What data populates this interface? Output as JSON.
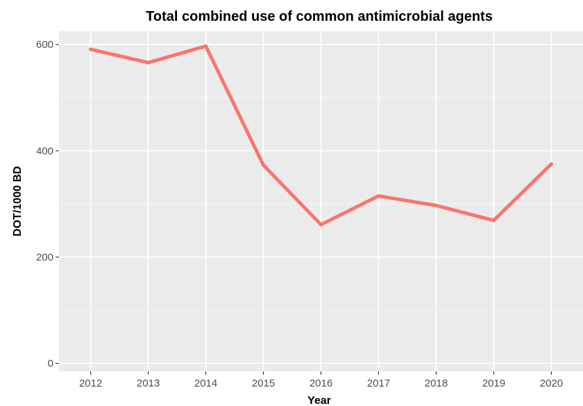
{
  "chart_data": {
    "type": "line",
    "title": "Total combined use of common antimicrobial agents",
    "xlabel": "Year",
    "ylabel": "DOT/1000 BD",
    "x": [
      2012,
      2013,
      2014,
      2015,
      2016,
      2017,
      2018,
      2019,
      2020
    ],
    "x_tick_labels": [
      "2012",
      "2013",
      "2014",
      "2015",
      "2016",
      "2017",
      "2018",
      "2019",
      "2020"
    ],
    "y_ticks": [
      0,
      200,
      400,
      600
    ],
    "y_tick_labels": [
      "0",
      "200",
      "400",
      "600"
    ],
    "ylim": [
      -15,
      625
    ],
    "xlim": [
      2011.45,
      2020.55
    ],
    "series": [
      {
        "values": [
          591,
          566,
          597,
          373,
          261,
          315,
          297,
          269,
          375
        ],
        "color": "#F8766D"
      }
    ],
    "grid": true,
    "panel_background": "#EBEBEB",
    "grid_color": "#FFFFFF",
    "legend": "none"
  }
}
